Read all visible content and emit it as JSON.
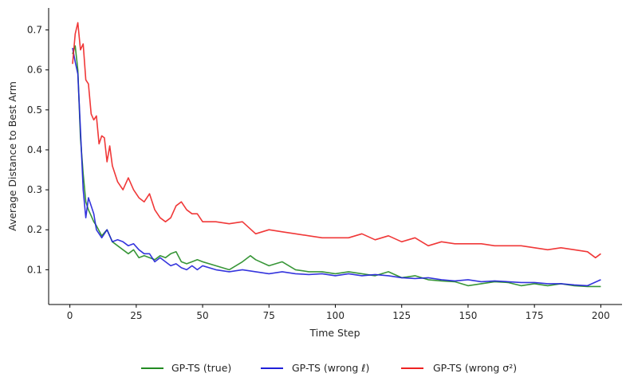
{
  "chart_data": {
    "type": "line",
    "title": "",
    "xlabel": "Time Step",
    "ylabel": "Average Distance to Best Arm",
    "xlim": [
      -8,
      208
    ],
    "ylim": [
      0.013,
      0.755
    ],
    "xticks": [
      0,
      25,
      50,
      75,
      100,
      125,
      150,
      175,
      200
    ],
    "yticks": [
      0.1,
      0.2,
      0.3,
      0.4,
      0.5,
      0.6,
      0.7
    ],
    "grid": false,
    "legend_position": "bottom-center",
    "series": [
      {
        "name": "GP-TS (true)",
        "color": "#228b22",
        "x": [
          1,
          2,
          3,
          4,
          5,
          6,
          7,
          8,
          9,
          10,
          12,
          14,
          16,
          18,
          20,
          22,
          24,
          26,
          28,
          30,
          32,
          34,
          36,
          38,
          40,
          42,
          44,
          46,
          48,
          50,
          55,
          60,
          65,
          68,
          70,
          75,
          80,
          85,
          90,
          95,
          100,
          105,
          110,
          115,
          120,
          125,
          130,
          135,
          140,
          145,
          150,
          155,
          160,
          165,
          170,
          175,
          180,
          185,
          190,
          195,
          200
        ],
        "y": [
          0.64,
          0.66,
          0.6,
          0.43,
          0.34,
          0.27,
          0.25,
          0.235,
          0.22,
          0.21,
          0.185,
          0.2,
          0.17,
          0.16,
          0.15,
          0.14,
          0.15,
          0.13,
          0.135,
          0.13,
          0.125,
          0.135,
          0.13,
          0.14,
          0.145,
          0.12,
          0.115,
          0.12,
          0.125,
          0.12,
          0.11,
          0.1,
          0.12,
          0.135,
          0.125,
          0.11,
          0.12,
          0.1,
          0.095,
          0.095,
          0.09,
          0.095,
          0.09,
          0.085,
          0.095,
          0.08,
          0.085,
          0.075,
          0.072,
          0.07,
          0.06,
          0.065,
          0.07,
          0.068,
          0.06,
          0.065,
          0.06,
          0.065,
          0.06,
          0.058,
          0.058
        ]
      },
      {
        "name": "GP-TS (wrong ℓ)",
        "color": "#1f1fd9",
        "x": [
          1,
          2,
          3,
          4,
          5,
          6,
          7,
          8,
          9,
          10,
          12,
          14,
          16,
          18,
          20,
          22,
          24,
          26,
          28,
          30,
          32,
          34,
          36,
          38,
          40,
          42,
          44,
          46,
          48,
          50,
          55,
          60,
          65,
          70,
          75,
          80,
          85,
          90,
          95,
          100,
          105,
          110,
          115,
          120,
          125,
          130,
          135,
          140,
          145,
          150,
          155,
          160,
          165,
          170,
          175,
          180,
          185,
          190,
          195,
          200
        ],
        "y": [
          0.655,
          0.62,
          0.59,
          0.45,
          0.3,
          0.23,
          0.28,
          0.26,
          0.24,
          0.2,
          0.18,
          0.2,
          0.17,
          0.175,
          0.17,
          0.16,
          0.165,
          0.15,
          0.14,
          0.14,
          0.12,
          0.13,
          0.12,
          0.11,
          0.115,
          0.105,
          0.1,
          0.11,
          0.1,
          0.11,
          0.1,
          0.095,
          0.1,
          0.095,
          0.09,
          0.095,
          0.09,
          0.088,
          0.09,
          0.085,
          0.09,
          0.085,
          0.088,
          0.085,
          0.08,
          0.078,
          0.08,
          0.075,
          0.072,
          0.075,
          0.07,
          0.072,
          0.07,
          0.068,
          0.068,
          0.065,
          0.065,
          0.062,
          0.06,
          0.075
        ]
      },
      {
        "name": "GP-TS (wrong σ²)",
        "color": "#ee2222",
        "x": [
          1,
          2,
          3,
          4,
          5,
          6,
          7,
          8,
          9,
          10,
          11,
          12,
          13,
          14,
          15,
          16,
          18,
          20,
          22,
          24,
          26,
          28,
          30,
          32,
          34,
          36,
          38,
          40,
          42,
          44,
          46,
          48,
          50,
          55,
          60,
          65,
          70,
          75,
          80,
          85,
          90,
          95,
          100,
          105,
          110,
          115,
          120,
          125,
          130,
          135,
          140,
          145,
          150,
          155,
          160,
          165,
          170,
          175,
          180,
          185,
          190,
          195,
          198,
          200
        ],
        "y": [
          0.615,
          0.69,
          0.718,
          0.65,
          0.665,
          0.575,
          0.565,
          0.49,
          0.475,
          0.485,
          0.415,
          0.435,
          0.43,
          0.37,
          0.41,
          0.36,
          0.32,
          0.3,
          0.33,
          0.3,
          0.28,
          0.27,
          0.29,
          0.25,
          0.23,
          0.22,
          0.23,
          0.26,
          0.27,
          0.25,
          0.24,
          0.24,
          0.22,
          0.22,
          0.215,
          0.22,
          0.19,
          0.2,
          0.195,
          0.19,
          0.185,
          0.18,
          0.18,
          0.18,
          0.19,
          0.175,
          0.185,
          0.17,
          0.18,
          0.16,
          0.17,
          0.165,
          0.165,
          0.165,
          0.16,
          0.16,
          0.16,
          0.155,
          0.15,
          0.155,
          0.15,
          0.145,
          0.13,
          0.14
        ]
      }
    ]
  }
}
